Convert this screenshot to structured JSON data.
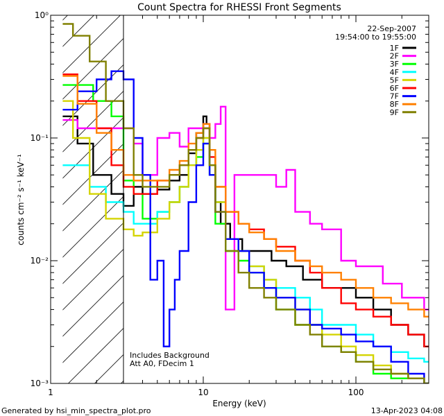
{
  "chart_data": {
    "type": "line",
    "title": "Count Spectra for RHESSI Front Segments",
    "xlabel": "Energy (keV)",
    "ylabel": "counts cm⁻² s⁻¹ keV⁻¹",
    "xscale": "log",
    "yscale": "log",
    "xlim": [
      1,
      300
    ],
    "ylim": [
      0.001,
      1
    ],
    "x_ticks": [
      {
        "value": 1,
        "label": "1"
      },
      {
        "value": 10,
        "label": "10"
      },
      {
        "value": 100,
        "label": "100"
      }
    ],
    "y_ticks": [
      {
        "value": 1,
        "label": "10⁰"
      },
      {
        "value": 0.1,
        "label": "10⁻¹"
      },
      {
        "value": 0.01,
        "label": "10⁻²"
      },
      {
        "value": 0.001,
        "label": "10⁻³"
      }
    ],
    "date": "22-Sep-2007",
    "time_range": "19:54:00 to 19:55:00",
    "annotations": [
      "Includes Background",
      "Att A0, FDecim 1"
    ],
    "hatch_region_keV": [
      1.2,
      3.0
    ],
    "energy_cutoff_keV": 3.0,
    "series": [
      {
        "name": "1F",
        "color": "#000000",
        "x": [
          1.2,
          1.5,
          1.9,
          2.5,
          3,
          3.5,
          4,
          5,
          6,
          7,
          8,
          9,
          10,
          10.5,
          11,
          12,
          13,
          15,
          18,
          22,
          28,
          35,
          45,
          60,
          80,
          100,
          130,
          170,
          220,
          280
        ],
        "values": [
          0.15,
          0.09,
          0.05,
          0.035,
          0.028,
          0.04,
          0.035,
          0.038,
          0.045,
          0.05,
          0.075,
          0.11,
          0.15,
          0.13,
          0.06,
          0.03,
          0.02,
          0.015,
          0.012,
          0.012,
          0.01,
          0.009,
          0.007,
          0.006,
          0.006,
          0.005,
          0.004,
          0.003,
          0.0025,
          0.002
        ]
      },
      {
        "name": "2F",
        "color": "#ff00ff",
        "x": [
          1.2,
          1.5,
          2,
          2.5,
          3,
          3.5,
          4,
          5,
          6,
          7,
          8,
          9,
          10,
          11,
          12,
          13,
          14,
          16,
          20,
          25,
          30,
          35,
          40,
          50,
          60,
          80,
          100,
          150,
          200,
          280
        ],
        "values": [
          0.14,
          0.12,
          0.12,
          0.12,
          0.12,
          0.09,
          0.05,
          0.1,
          0.11,
          0.085,
          0.12,
          0.12,
          0.13,
          0.1,
          0.13,
          0.18,
          0.004,
          0.05,
          0.05,
          0.05,
          0.04,
          0.055,
          0.025,
          0.02,
          0.018,
          0.01,
          0.009,
          0.0065,
          0.005,
          0.004
        ]
      },
      {
        "name": "3F",
        "color": "#00ff00",
        "x": [
          1.2,
          1.5,
          1.9,
          2.5,
          3,
          3.5,
          4,
          5,
          6,
          7,
          8,
          9,
          10,
          11,
          12,
          14,
          17,
          20,
          25,
          30,
          40,
          50,
          60,
          80,
          100,
          130,
          170,
          220,
          280
        ],
        "values": [
          0.27,
          0.27,
          0.2,
          0.15,
          0.045,
          0.035,
          0.022,
          0.025,
          0.03,
          0.04,
          0.06,
          0.07,
          0.09,
          0.05,
          0.02,
          0.012,
          0.01,
          0.008,
          0.006,
          0.004,
          0.003,
          0.003,
          0.002,
          0.0018,
          0.0015,
          0.0012,
          0.0011,
          0.0011,
          0.001
        ]
      },
      {
        "name": "4F",
        "color": "#00ffff",
        "x": [
          1.2,
          1.4,
          1.8,
          2.3,
          3,
          3.5,
          4,
          5,
          6,
          7,
          8,
          9,
          10,
          11,
          12,
          14,
          17,
          20,
          25,
          30,
          40,
          50,
          60,
          80,
          100,
          130,
          170,
          220,
          280
        ],
        "values": [
          0.06,
          0.06,
          0.04,
          0.03,
          0.025,
          0.02,
          0.02,
          0.025,
          0.03,
          0.04,
          0.06,
          0.08,
          0.1,
          0.06,
          0.03,
          0.015,
          0.012,
          0.009,
          0.007,
          0.006,
          0.005,
          0.004,
          0.003,
          0.003,
          0.0025,
          0.002,
          0.0018,
          0.0016,
          0.0015
        ]
      },
      {
        "name": "5F",
        "color": "#d4d400",
        "x": [
          1.2,
          1.4,
          1.8,
          2.3,
          3,
          3.5,
          4,
          5,
          6,
          7,
          8,
          9,
          10,
          11,
          12,
          14,
          17,
          20,
          25,
          30,
          40,
          50,
          60,
          80,
          100,
          130,
          170,
          220,
          280
        ],
        "values": [
          0.2,
          0.1,
          0.035,
          0.022,
          0.018,
          0.016,
          0.017,
          0.022,
          0.03,
          0.04,
          0.06,
          0.08,
          0.1,
          0.06,
          0.03,
          0.015,
          0.012,
          0.009,
          0.007,
          0.005,
          0.004,
          0.003,
          0.0025,
          0.002,
          0.0017,
          0.0014,
          0.0012,
          0.0011,
          0.001
        ]
      },
      {
        "name": "6F",
        "color": "#ff0000",
        "x": [
          1.2,
          1.5,
          2,
          2.5,
          3,
          3.5,
          4,
          5,
          6,
          7,
          8,
          9,
          10,
          11,
          12,
          14,
          17,
          20,
          25,
          30,
          40,
          50,
          60,
          80,
          100,
          130,
          170,
          220,
          280
        ],
        "values": [
          0.33,
          0.2,
          0.12,
          0.06,
          0.04,
          0.035,
          0.035,
          0.045,
          0.05,
          0.06,
          0.08,
          0.1,
          0.12,
          0.07,
          0.04,
          0.025,
          0.02,
          0.018,
          0.015,
          0.013,
          0.01,
          0.008,
          0.006,
          0.0045,
          0.004,
          0.0035,
          0.003,
          0.0025,
          0.002
        ]
      },
      {
        "name": "7F",
        "color": "#0000ff",
        "x": [
          1.2,
          1.5,
          2,
          2.5,
          3,
          3.5,
          4,
          4.5,
          5,
          5.5,
          6,
          6.5,
          7,
          8,
          9,
          10,
          11,
          12,
          14,
          17,
          20,
          25,
          30,
          40,
          50,
          60,
          80,
          100,
          130,
          170,
          220,
          280
        ],
        "values": [
          0.17,
          0.24,
          0.3,
          0.35,
          0.3,
          0.1,
          0.05,
          0.007,
          0.01,
          0.002,
          0.004,
          0.007,
          0.012,
          0.03,
          0.06,
          0.09,
          0.05,
          0.025,
          0.015,
          0.012,
          0.008,
          0.006,
          0.005,
          0.004,
          0.003,
          0.0028,
          0.0025,
          0.0022,
          0.002,
          0.0015,
          0.0012,
          0.001
        ]
      },
      {
        "name": "8F",
        "color": "#ff8000",
        "x": [
          1.2,
          1.5,
          2,
          2.5,
          3,
          3.5,
          4,
          5,
          6,
          7,
          8,
          9,
          10,
          11,
          12,
          14,
          17,
          20,
          25,
          30,
          40,
          50,
          60,
          80,
          100,
          130,
          170,
          220,
          280
        ],
        "values": [
          0.32,
          0.19,
          0.11,
          0.08,
          0.05,
          0.045,
          0.045,
          0.045,
          0.055,
          0.065,
          0.09,
          0.11,
          0.13,
          0.08,
          0.04,
          0.025,
          0.02,
          0.017,
          0.015,
          0.012,
          0.01,
          0.009,
          0.008,
          0.007,
          0.006,
          0.005,
          0.0045,
          0.004,
          0.0035
        ]
      },
      {
        "name": "9F",
        "color": "#808000",
        "x": [
          1.2,
          1.4,
          1.8,
          2.3,
          3,
          3.5,
          4,
          5,
          6,
          7,
          8,
          9,
          10,
          11,
          12,
          14,
          17,
          20,
          25,
          30,
          40,
          50,
          60,
          80,
          100,
          130,
          170,
          220,
          280
        ],
        "values": [
          0.85,
          0.68,
          0.42,
          0.2,
          0.12,
          0.05,
          0.04,
          0.04,
          0.05,
          0.06,
          0.08,
          0.1,
          0.12,
          0.06,
          0.025,
          0.012,
          0.008,
          0.006,
          0.005,
          0.004,
          0.003,
          0.0025,
          0.002,
          0.0018,
          0.0015,
          0.0013,
          0.0012,
          0.0011,
          0.001
        ]
      }
    ]
  },
  "footer": {
    "generated_by": "Generated by hsi_min_spectra_plot.pro",
    "timestamp": "13-Apr-2023 04:08"
  }
}
